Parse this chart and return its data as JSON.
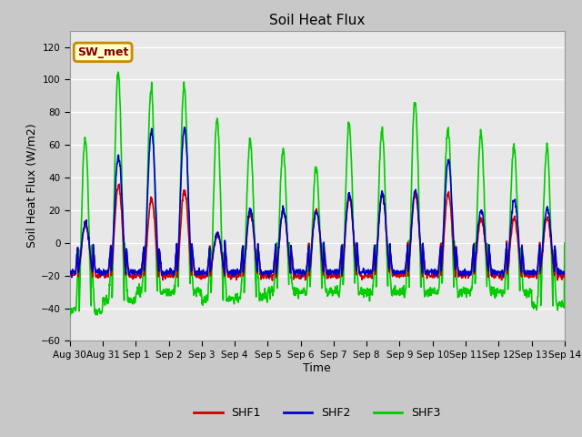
{
  "title": "Soil Heat Flux",
  "xlabel": "Time",
  "ylabel": "Soil Heat Flux (W/m2)",
  "ylim": [
    -60,
    130
  ],
  "yticks": [
    -60,
    -40,
    -20,
    0,
    20,
    40,
    60,
    80,
    100,
    120
  ],
  "date_labels": [
    "Aug 30",
    "Aug 31",
    "Sep 1",
    "Sep 2",
    "Sep 3",
    "Sep 4",
    "Sep 5",
    "Sep 6",
    "Sep 7",
    "Sep 8",
    "Sep 9",
    "Sep 10",
    "Sep 11",
    "Sep 12",
    "Sep 13",
    "Sep 14"
  ],
  "shf1_color": "#cc0000",
  "shf2_color": "#0000cc",
  "shf3_color": "#00cc00",
  "legend_label1": "SHF1",
  "legend_label2": "SHF2",
  "legend_label3": "SHF3",
  "annotation_text": "SW_met",
  "annotation_bg": "#ffffcc",
  "annotation_border": "#cc8800",
  "plot_bg": "#e8e8e8",
  "grid_color": "#ffffff",
  "line_width": 1.2
}
